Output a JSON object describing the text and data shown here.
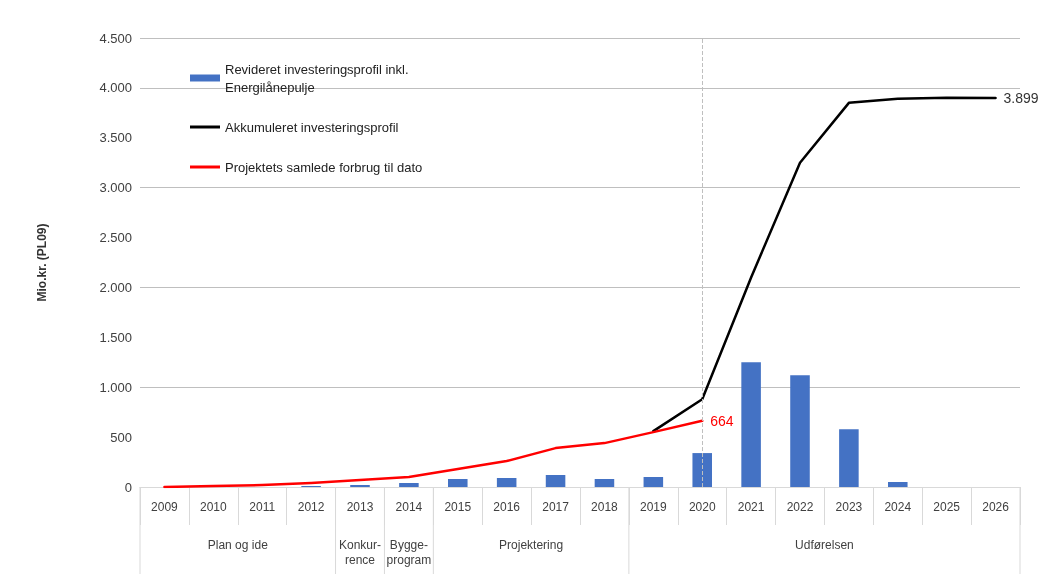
{
  "chart_data": {
    "type": "bar",
    "ylabel": "Mio.kr. (PL09)",
    "categories": [
      "2009",
      "2010",
      "2011",
      "2012",
      "2013",
      "2014",
      "2015",
      "2016",
      "2017",
      "2018",
      "2019",
      "2020",
      "2021",
      "2022",
      "2023",
      "2024",
      "2025",
      "2026"
    ],
    "series": [
      {
        "name": "Revideret investeringsprofil inkl. Energilånepulje",
        "color": "#4472c4",
        "values": [
          0,
          0,
          0,
          10,
          20,
          40,
          80,
          90,
          120,
          80,
          100,
          340,
          1250,
          1120,
          580,
          50,
          0,
          0
        ]
      },
      {
        "name": "Akkumuleret investeringsprofil",
        "type": "line",
        "color": "#000000",
        "values": [
          null,
          null,
          null,
          null,
          null,
          null,
          null,
          null,
          null,
          null,
          560,
          880,
          2100,
          3250,
          3850,
          3890,
          3900,
          3899
        ],
        "value_labels": [
          null,
          null,
          null,
          null,
          null,
          null,
          null,
          null,
          null,
          null,
          null,
          null,
          null,
          null,
          null,
          null,
          null,
          "3.899"
        ]
      },
      {
        "name": "Projektets samlede forbrug til dato",
        "type": "line",
        "color": "#ff0000",
        "values": [
          0,
          10,
          20,
          40,
          70,
          100,
          180,
          260,
          390,
          440,
          550,
          664,
          null,
          null,
          null,
          null,
          null,
          null
        ],
        "value_labels": [
          null,
          null,
          null,
          null,
          null,
          null,
          null,
          null,
          null,
          null,
          null,
          "664",
          null,
          null,
          null,
          null,
          null,
          null
        ]
      }
    ],
    "ylim": [
      0,
      4500
    ],
    "yticks": [
      0,
      500,
      {
        "value": 1000,
        "label": "1.000"
      },
      {
        "value": 1500,
        "label": "1.500"
      },
      {
        "value": 2000,
        "label": "2.000"
      },
      {
        "value": 2500,
        "label": "2.500"
      },
      {
        "value": 3000,
        "label": "3.000"
      },
      {
        "value": 3500,
        "label": "3.500"
      },
      {
        "value": 4000,
        "label": "4.000"
      },
      {
        "value": 4500,
        "label": "4.500"
      }
    ],
    "grid": "y",
    "legend": "top left",
    "line_style": "solid",
    "ref_lines": [
      {
        "axis": "x",
        "value": "2020",
        "color": "#bfbfbf",
        "line_style": "dashed"
      }
    ],
    "annotations": [
      "Plan og ide",
      "Konkur-rence",
      "Bygge-program",
      "Projektering",
      "Udførelsen"
    ]
  }
}
